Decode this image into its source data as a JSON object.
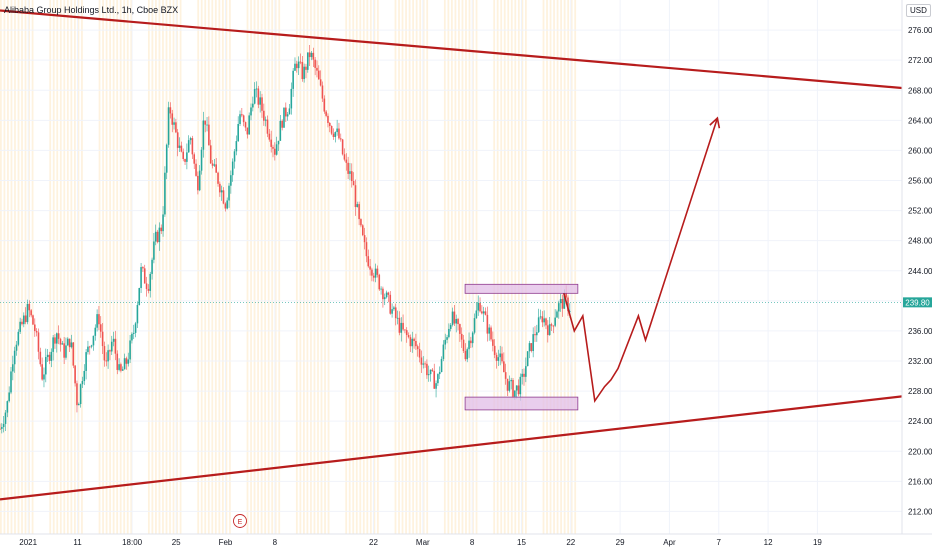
{
  "title": "Alibaba Group Holdings Ltd., 1h, Cboe BZX",
  "currency": "USD",
  "price_label": "239.80",
  "event_marker": "E",
  "colors": {
    "up": "#26a69a",
    "down": "#ef5350",
    "trendline": "#b71c1c",
    "projection": "#b71c1c",
    "zone_fill": "#e1bee7",
    "zone_border": "#8e3a8e",
    "price_line": "#26a69a",
    "session_fill": "#fde7c3"
  },
  "chart_data": {
    "type": "candlestick",
    "title": "Alibaba Group Holdings Ltd., 1h, Cboe BZX",
    "ylim": [
      209,
      280
    ],
    "y_ticks": [
      212,
      216,
      220,
      224,
      228,
      232,
      236,
      240,
      244,
      248,
      252,
      256,
      260,
      264,
      268,
      272,
      276
    ],
    "y_tick_labels": [
      "212.00",
      "216.00",
      "220.00",
      "224.00",
      "228.00",
      "232.00",
      "236.00",
      "240.00",
      "244.00",
      "248.00",
      "252.00",
      "256.00",
      "260.00",
      "264.00",
      "268.00",
      "272.00",
      "276.00"
    ],
    "x_ticks": [
      "2021",
      "11",
      "18:00",
      "25",
      "Feb",
      "8",
      "22",
      "Mar",
      "8",
      "15",
      "22",
      "29",
      "Apr",
      "7",
      "12",
      "19"
    ],
    "x_tick_days": [
      4,
      11,
      18.75,
      25,
      32,
      39,
      53,
      60,
      67,
      74,
      81,
      88,
      95,
      102,
      109,
      116
    ],
    "x_range": [
      0,
      128
    ],
    "last_price": 239.8,
    "price_path_days": [
      0,
      1,
      2,
      4,
      5,
      6,
      8,
      9,
      10,
      11,
      12,
      14,
      15,
      16,
      17,
      18,
      19,
      20,
      21,
      22,
      23,
      24,
      25,
      26,
      27,
      28,
      29,
      30,
      31,
      32,
      33,
      34,
      35,
      36,
      37,
      38,
      39,
      40,
      41,
      42,
      43,
      44,
      45,
      46,
      47,
      48,
      49,
      50,
      51,
      52,
      53,
      54,
      55,
      56,
      57,
      58,
      59,
      60,
      61,
      62,
      63,
      64,
      65,
      66,
      67,
      68,
      69,
      70,
      71,
      72,
      73,
      74,
      75,
      76,
      77,
      78,
      79,
      80,
      81
    ],
    "price_path_values": [
      223,
      226,
      234,
      239,
      236,
      230,
      236,
      233,
      235,
      226,
      232,
      238,
      231,
      235,
      230,
      232,
      236,
      244,
      242,
      248,
      250,
      266,
      262,
      258,
      262,
      255,
      265,
      258,
      256,
      253,
      258,
      265,
      262,
      268,
      266,
      263,
      260,
      264,
      266,
      272,
      270,
      273,
      270,
      266,
      263,
      262,
      258,
      256,
      250,
      246,
      244,
      242,
      240,
      238,
      236,
      235,
      234,
      232,
      230,
      229,
      234,
      238,
      236,
      233,
      236,
      240,
      237,
      234,
      232,
      229,
      228,
      229,
      233,
      236,
      238,
      236,
      239,
      240,
      239
    ],
    "trendlines": [
      {
        "name": "upper",
        "start": [
          0,
          278.6
        ],
        "end": [
          128,
          268.3
        ]
      },
      {
        "name": "lower",
        "start": [
          0,
          213.6
        ],
        "end": [
          128,
          227.3
        ]
      }
    ],
    "zones": [
      {
        "name": "resistance",
        "x": [
          66,
          82
        ],
        "y": [
          241,
          242.2
        ]
      },
      {
        "name": "support",
        "x": [
          66,
          82
        ],
        "y": [
          225.5,
          227.2
        ]
      }
    ],
    "projection": {
      "x": [
        80,
        81.5,
        82.7,
        84.4,
        85.8,
        86.7,
        87.7,
        90.6,
        91.6,
        101.8
      ],
      "y": [
        241,
        236,
        238,
        226.7,
        228.6,
        229.5,
        231,
        238,
        234.8,
        264.3
      ]
    }
  }
}
